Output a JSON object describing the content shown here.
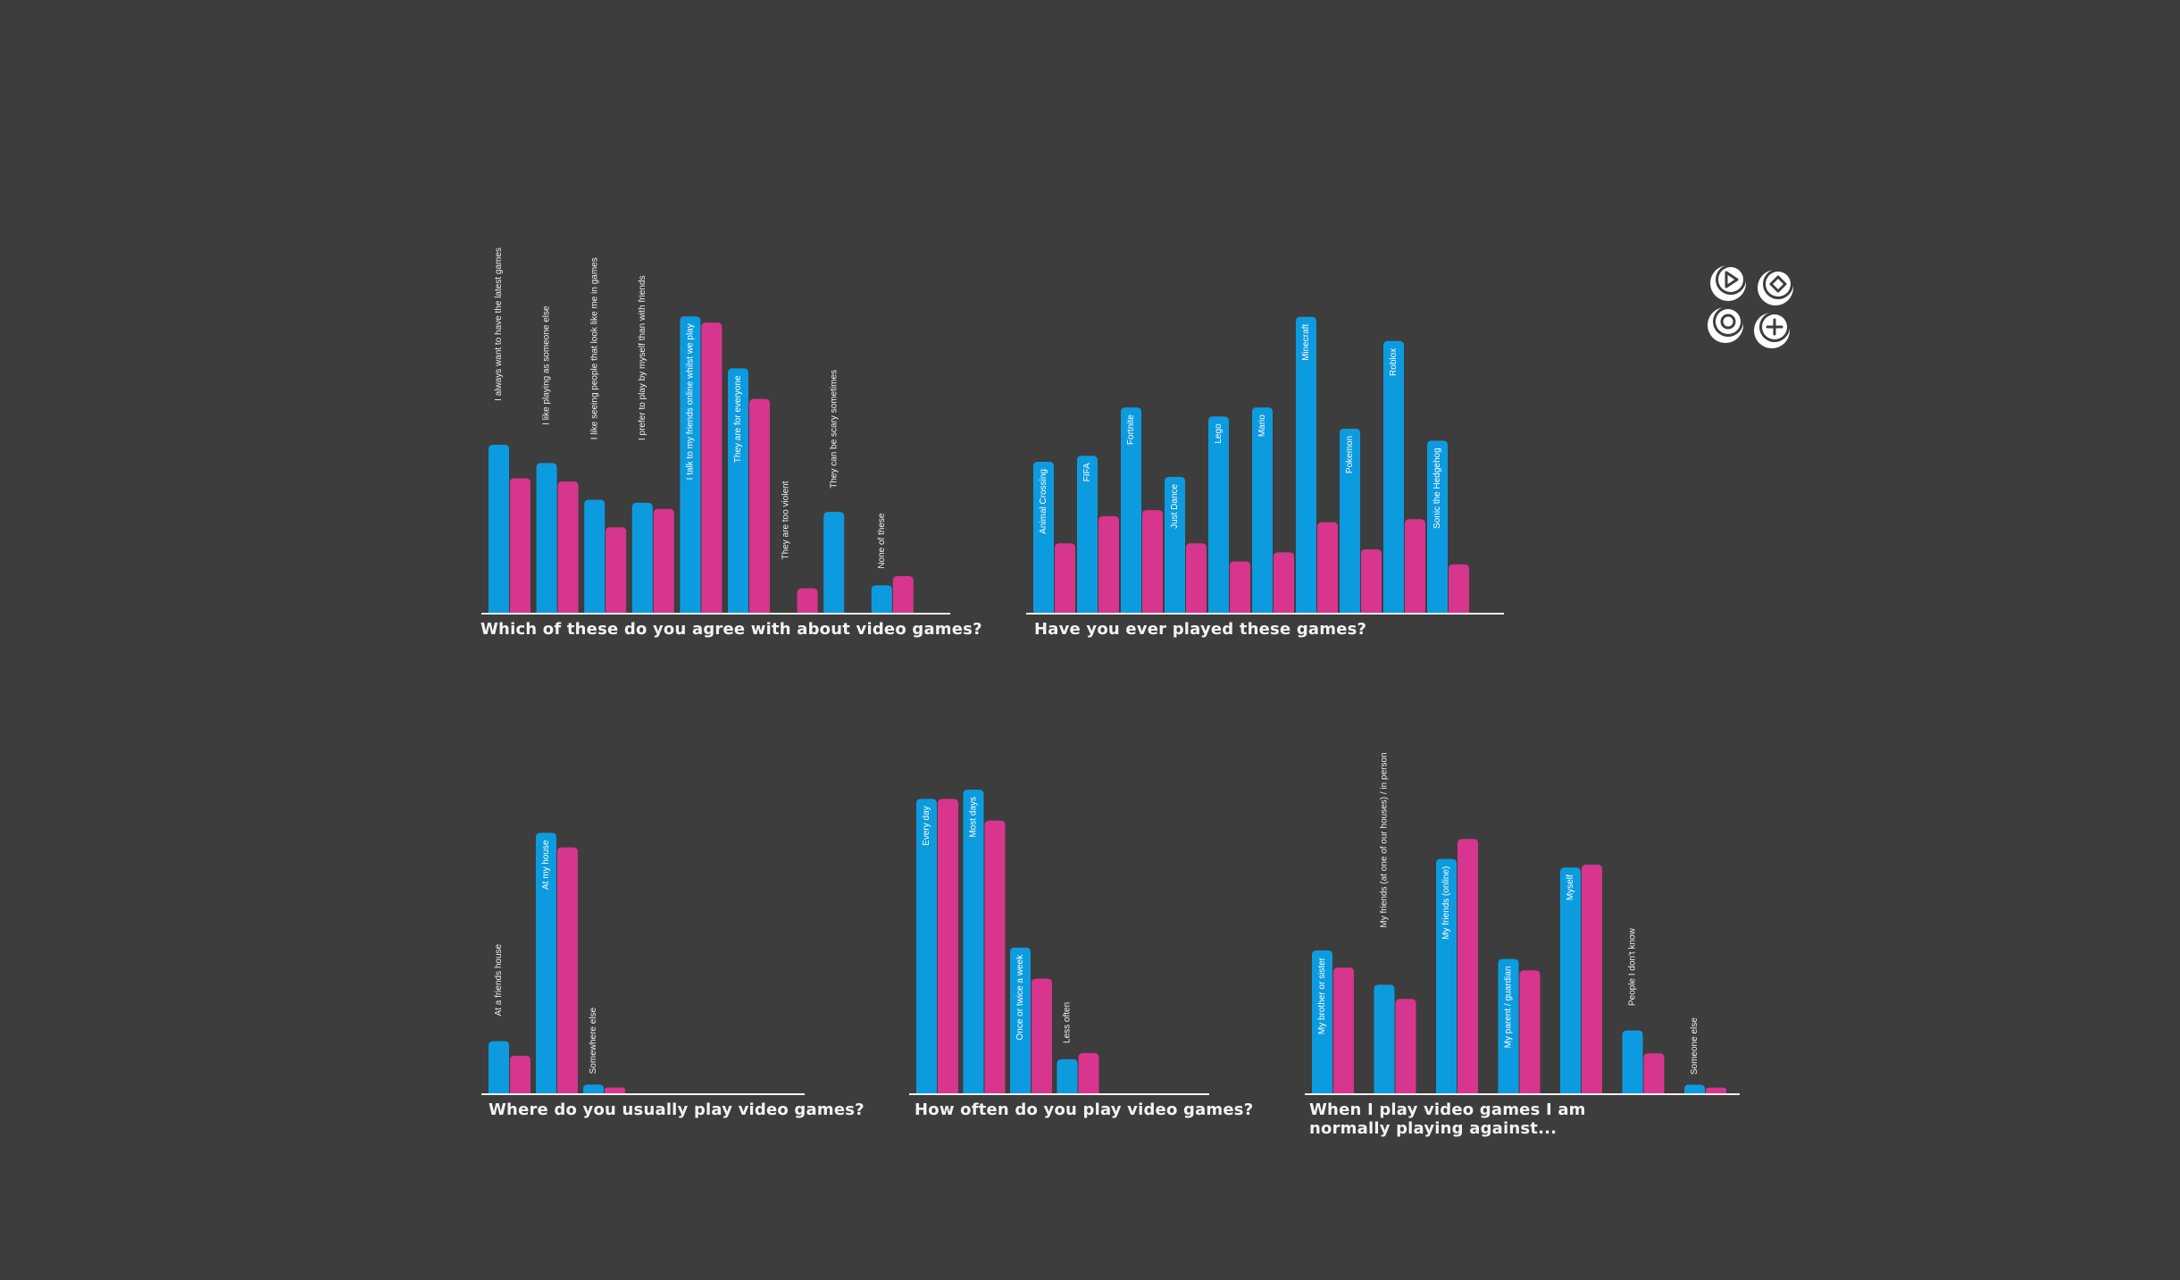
{
  "colors": {
    "background": "#3d3d3d",
    "series_a": "#0d9be0",
    "series_b": "#d8358e",
    "axis": "#f2f2f2",
    "label_inside": "#ffffff",
    "label_outside": "#f0f0f0"
  },
  "logo": {
    "icon": "game-controller-buttons-logo",
    "buttons": [
      "play-triangle",
      "diamond",
      "circle",
      "plus"
    ]
  },
  "chart_data": [
    {
      "type": "bar",
      "title": "Which of these do you agree with about video games?",
      "categories": [
        "I always want to have the latest games",
        "I like playing as someone else",
        "I like seeing people that look like me in games",
        "I prefer to play by myself than with friends",
        "I talk to my friends online whilst we play",
        "They are for everyone",
        "They are too violent",
        "They can be scary sometimes",
        "None of these"
      ],
      "series": [
        {
          "values": [
            55,
            49,
            37,
            36,
            97,
            80,
            0,
            33,
            9
          ]
        },
        {
          "values": [
            44,
            43,
            28,
            34,
            95,
            70,
            8,
            0,
            12
          ]
        }
      ],
      "ylim": [
        0,
        100
      ]
    },
    {
      "type": "bar",
      "title": "Have you ever played these games?",
      "categories": [
        "Animal Crossing",
        "FIFA",
        "Fortnite",
        "Just Dance",
        "Lego",
        "Mario",
        "Minecraft",
        "Pokemon",
        "Roblox",
        "Sonic the Hedgehog"
      ],
      "series": [
        {
          "values": [
            50,
            52,
            68,
            45,
            65,
            68,
            98,
            61,
            90,
            57
          ]
        },
        {
          "values": [
            23,
            32,
            34,
            23,
            17,
            20,
            30,
            21,
            31,
            16
          ]
        }
      ],
      "ylim": [
        0,
        100
      ]
    },
    {
      "type": "bar",
      "title": "Where do you usually play video games?",
      "categories": [
        "At a friends house",
        "At my house",
        "Somewhere else"
      ],
      "series": [
        {
          "values": [
            18,
            90,
            3
          ]
        },
        {
          "values": [
            13,
            85,
            2
          ]
        }
      ],
      "ylim": [
        0,
        100
      ]
    },
    {
      "type": "bar",
      "title": "How often do you play video games?",
      "categories": [
        "Every day",
        "Most days",
        "Once or twice a week",
        "Less often"
      ],
      "series": [
        {
          "values": [
            95,
            98,
            47,
            11
          ]
        },
        {
          "values": [
            95,
            88,
            37,
            13
          ]
        }
      ],
      "ylim": [
        0,
        100
      ]
    },
    {
      "type": "bar",
      "title": "When I play video games I am\nnormally playing against...",
      "categories": [
        "My brother or sister",
        "My friends (at one of our houses) / in person",
        "My friends (online)",
        "My parent / guardian",
        "Myself",
        "People I don't know",
        "Someone else"
      ],
      "series": [
        {
          "values": [
            50,
            38,
            82,
            47,
            79,
            22,
            3
          ]
        },
        {
          "values": [
            44,
            33,
            89,
            43,
            80,
            14,
            2
          ]
        }
      ],
      "ylim": [
        0,
        100
      ]
    }
  ]
}
